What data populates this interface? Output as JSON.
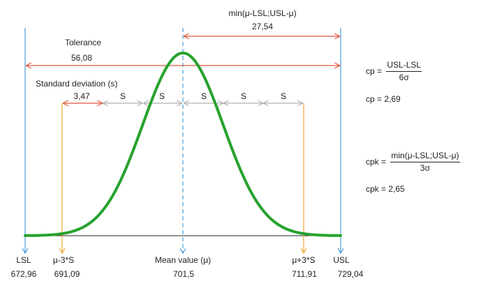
{
  "colors": {
    "curve": "#27a22e",
    "limit": "#4a9fd8",
    "sigma": "#f0a830",
    "tolerance": "#e0553e",
    "std": "#b0b0b0",
    "baseline": "#222222"
  },
  "labels": {
    "lsl": "LSL",
    "usl": "USL",
    "mu_minus": "μ-3*S",
    "mu_plus": "μ+3*S",
    "mean": "Mean value (μ)",
    "lsl_val": "672,96",
    "mu_minus_val": "691,09",
    "mean_val": "701,5",
    "mu_plus_val": "711,91",
    "usl_val": "729,04",
    "tolerance_title": "Tolerance",
    "tolerance_val": "56,08",
    "min_title": "min(μ-LSL;USL-μ)",
    "min_val": "27,54",
    "std_title": "Standard deviation (s)",
    "std_val": "3,47",
    "s_labels": [
      "S",
      "S",
      "S",
      "S",
      "S"
    ]
  },
  "formulas": {
    "cp_lhs": "cp =",
    "cp_num": "USL-LSL",
    "cp_den": "6σ",
    "cp_result": "cp = 2,69",
    "cpk_lhs": "cpk =",
    "cpk_num": "min(μ-LSL;USL-μ)",
    "cpk_den": "3σ",
    "cpk_result": "cpk = 2,65"
  }
}
